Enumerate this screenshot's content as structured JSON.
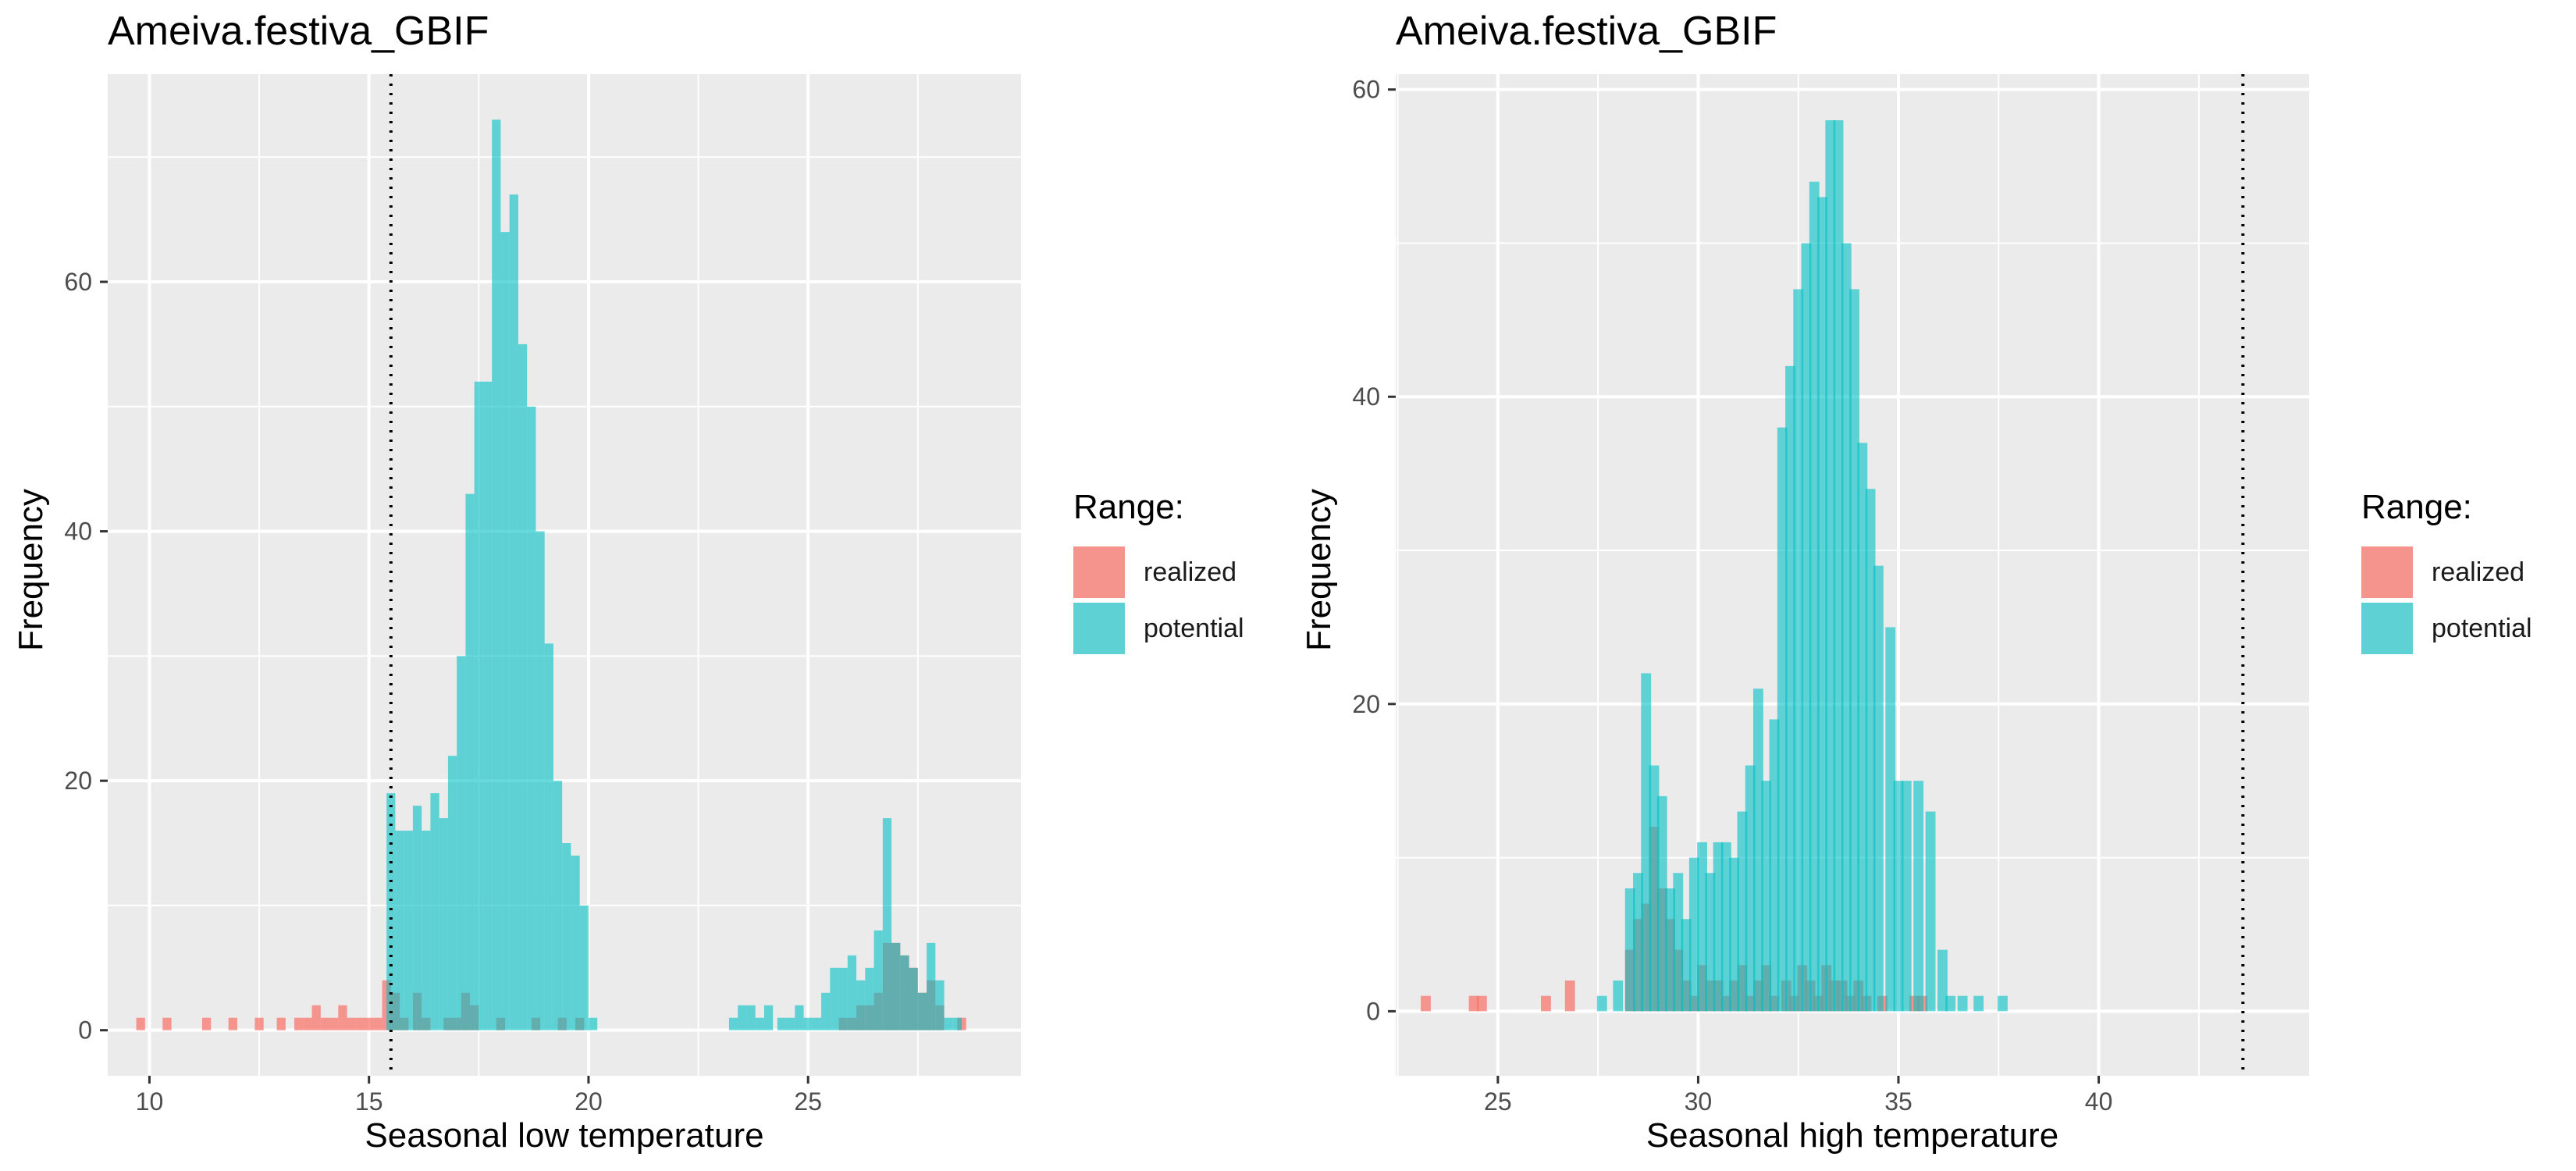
{
  "colors": {
    "realized": "#F8766D",
    "potential": "#00BFC4",
    "panel_bg": "#EBEBEB",
    "grid": "#FFFFFF"
  },
  "chart_data": [
    {
      "type": "histogram",
      "title": "Ameiva.festiva_GBIF",
      "xlabel": "Seasonal low temperature",
      "ylabel": "Frequency",
      "xlim": [
        9.05,
        29.85
      ],
      "ylim": [
        -3.65,
        76.65
      ],
      "xticks": [
        10,
        15,
        20,
        25
      ],
      "yticks": [
        0,
        20,
        40,
        60
      ],
      "bin_width": 0.2,
      "vline": 15.5,
      "grid": true,
      "legend": {
        "title": "Range:",
        "position": "right",
        "entries": [
          "realized",
          "potential"
        ]
      },
      "series": [
        {
          "name": "realized",
          "bins": [
            [
              9.8,
              1
            ],
            [
              10.4,
              1
            ],
            [
              11.3,
              1
            ],
            [
              11.9,
              1
            ],
            [
              12.5,
              1
            ],
            [
              13.0,
              1
            ],
            [
              13.4,
              1
            ],
            [
              13.6,
              1
            ],
            [
              13.8,
              2
            ],
            [
              14.0,
              1
            ],
            [
              14.2,
              1
            ],
            [
              14.4,
              2
            ],
            [
              14.6,
              1
            ],
            [
              14.8,
              1
            ],
            [
              15.0,
              1
            ],
            [
              15.2,
              1
            ],
            [
              15.4,
              4
            ],
            [
              15.6,
              3
            ],
            [
              15.8,
              1
            ],
            [
              16.1,
              3
            ],
            [
              16.3,
              1
            ],
            [
              16.8,
              1
            ],
            [
              17.0,
              1
            ],
            [
              17.2,
              3
            ],
            [
              17.4,
              2
            ],
            [
              18.0,
              1
            ],
            [
              18.8,
              1
            ],
            [
              19.4,
              1
            ],
            [
              19.8,
              1
            ],
            [
              25.8,
              1
            ],
            [
              26.0,
              1
            ],
            [
              26.2,
              2
            ],
            [
              26.4,
              2
            ],
            [
              26.6,
              3
            ],
            [
              26.8,
              7
            ],
            [
              27.0,
              7
            ],
            [
              27.2,
              6
            ],
            [
              27.4,
              5
            ],
            [
              27.6,
              3
            ],
            [
              27.8,
              4
            ],
            [
              28.0,
              2
            ],
            [
              28.5,
              1
            ]
          ]
        },
        {
          "name": "potential",
          "bins": [
            [
              15.5,
              19
            ],
            [
              15.7,
              16
            ],
            [
              15.9,
              16
            ],
            [
              16.1,
              18
            ],
            [
              16.3,
              16
            ],
            [
              16.5,
              19
            ],
            [
              16.7,
              17
            ],
            [
              16.9,
              22
            ],
            [
              17.1,
              30
            ],
            [
              17.3,
              43
            ],
            [
              17.5,
              52
            ],
            [
              17.7,
              52
            ],
            [
              17.9,
              73
            ],
            [
              18.1,
              64
            ],
            [
              18.3,
              67
            ],
            [
              18.5,
              55
            ],
            [
              18.7,
              50
            ],
            [
              18.9,
              40
            ],
            [
              19.1,
              31
            ],
            [
              19.3,
              20
            ],
            [
              19.5,
              15
            ],
            [
              19.7,
              14
            ],
            [
              19.9,
              10
            ],
            [
              20.1,
              1
            ],
            [
              23.3,
              1
            ],
            [
              23.5,
              2
            ],
            [
              23.7,
              2
            ],
            [
              23.9,
              1
            ],
            [
              24.1,
              2
            ],
            [
              24.4,
              1
            ],
            [
              24.6,
              1
            ],
            [
              24.8,
              2
            ],
            [
              25.0,
              1
            ],
            [
              25.2,
              1
            ],
            [
              25.4,
              3
            ],
            [
              25.6,
              5
            ],
            [
              25.8,
              5
            ],
            [
              26.0,
              6
            ],
            [
              26.2,
              4
            ],
            [
              26.4,
              5
            ],
            [
              26.6,
              8
            ],
            [
              26.8,
              17
            ],
            [
              27.0,
              7
            ],
            [
              27.2,
              6
            ],
            [
              27.4,
              5
            ],
            [
              27.6,
              3
            ],
            [
              27.8,
              7
            ],
            [
              28.0,
              4
            ],
            [
              28.2,
              1
            ],
            [
              28.4,
              1
            ]
          ]
        }
      ]
    },
    {
      "type": "histogram",
      "title": "Ameiva.festiva_GBIF",
      "xlabel": "Seasonal high temperature",
      "ylabel": "Frequency",
      "xlim": [
        22.45,
        45.25
      ],
      "ylim": [
        -4.2,
        61.0
      ],
      "xticks": [
        25,
        30,
        35,
        40
      ],
      "yticks": [
        0,
        20,
        40,
        60
      ],
      "bin_width": 0.25,
      "vline": 43.6,
      "grid": true,
      "legend": {
        "title": "Range:",
        "position": "right",
        "entries": [
          "realized",
          "potential"
        ]
      },
      "series": [
        {
          "name": "realized",
          "bins": [
            [
              23.2,
              1
            ],
            [
              24.4,
              1
            ],
            [
              24.6,
              1
            ],
            [
              26.2,
              1
            ],
            [
              26.8,
              2
            ],
            [
              28.3,
              4
            ],
            [
              28.5,
              6
            ],
            [
              28.7,
              7
            ],
            [
              28.9,
              12
            ],
            [
              29.1,
              8
            ],
            [
              29.3,
              6
            ],
            [
              29.5,
              4
            ],
            [
              29.7,
              2
            ],
            [
              29.9,
              1
            ],
            [
              30.1,
              3
            ],
            [
              30.3,
              2
            ],
            [
              30.5,
              2
            ],
            [
              30.7,
              1
            ],
            [
              30.9,
              2
            ],
            [
              31.1,
              3
            ],
            [
              31.3,
              1
            ],
            [
              31.5,
              2
            ],
            [
              31.7,
              3
            ],
            [
              31.9,
              1
            ],
            [
              32.2,
              2
            ],
            [
              32.4,
              1
            ],
            [
              32.6,
              3
            ],
            [
              32.8,
              2
            ],
            [
              33.0,
              1
            ],
            [
              33.2,
              3
            ],
            [
              33.4,
              2
            ],
            [
              33.6,
              2
            ],
            [
              33.8,
              1
            ],
            [
              34.0,
              2
            ],
            [
              34.2,
              1
            ],
            [
              34.6,
              1
            ],
            [
              35.4,
              1
            ],
            [
              35.6,
              1
            ]
          ]
        },
        {
          "name": "potential",
          "bins": [
            [
              27.6,
              1
            ],
            [
              28.0,
              2
            ],
            [
              28.3,
              8
            ],
            [
              28.5,
              9
            ],
            [
              28.7,
              22
            ],
            [
              28.9,
              16
            ],
            [
              29.1,
              14
            ],
            [
              29.3,
              8
            ],
            [
              29.5,
              9
            ],
            [
              29.7,
              6
            ],
            [
              29.9,
              10
            ],
            [
              30.1,
              11
            ],
            [
              30.3,
              9
            ],
            [
              30.5,
              11
            ],
            [
              30.7,
              11
            ],
            [
              30.9,
              10
            ],
            [
              31.1,
              13
            ],
            [
              31.3,
              16
            ],
            [
              31.5,
              21
            ],
            [
              31.7,
              15
            ],
            [
              31.9,
              19
            ],
            [
              32.1,
              38
            ],
            [
              32.3,
              42
            ],
            [
              32.5,
              47
            ],
            [
              32.7,
              50
            ],
            [
              32.9,
              54
            ],
            [
              33.1,
              53
            ],
            [
              33.3,
              58
            ],
            [
              33.5,
              58
            ],
            [
              33.7,
              50
            ],
            [
              33.9,
              47
            ],
            [
              34.1,
              37
            ],
            [
              34.3,
              34
            ],
            [
              34.5,
              29
            ],
            [
              34.8,
              25
            ],
            [
              35.0,
              15
            ],
            [
              35.2,
              15
            ],
            [
              35.5,
              15
            ],
            [
              35.8,
              13
            ],
            [
              36.1,
              4
            ],
            [
              36.3,
              1
            ],
            [
              36.6,
              1
            ],
            [
              37.0,
              1
            ],
            [
              37.6,
              1
            ]
          ]
        }
      ]
    }
  ]
}
